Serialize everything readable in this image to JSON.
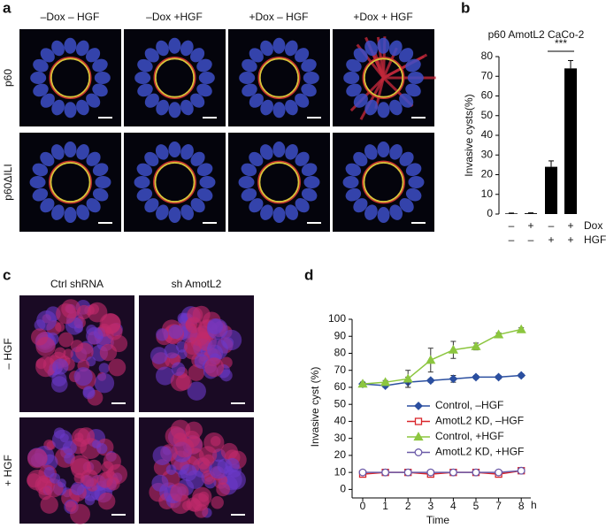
{
  "panels": {
    "a": {
      "letter": "a",
      "columns": [
        "–Dox – HGF",
        "–Dox +HGF",
        "+Dox  – HGF",
        "+Dox + HGF"
      ],
      "rows": [
        "p60",
        "p60ΔILI"
      ]
    },
    "c": {
      "letter": "c",
      "columns": [
        "Ctrl shRNA",
        "sh AmotL2"
      ],
      "rows": [
        "– HGF",
        "+ HGF"
      ]
    }
  },
  "chart_data": [
    {
      "type": "bar",
      "panel": "b",
      "title": "p60 AmotL2 CaCo-2",
      "ylabel": "Invasive cysts(%)",
      "values": [
        0.3,
        0.4,
        24,
        74
      ],
      "errors": [
        0.2,
        0.2,
        3,
        4
      ],
      "color": "#000000",
      "ylim": [
        0,
        80
      ],
      "yticks": [
        0,
        10,
        20,
        30,
        40,
        50,
        60,
        70,
        80
      ],
      "conditions": [
        {
          "name": "Dox",
          "values": [
            "–",
            "+",
            "–",
            "+"
          ]
        },
        {
          "name": "HGF",
          "values": [
            "–",
            "–",
            "+",
            "+"
          ]
        }
      ],
      "annotation": "***"
    },
    {
      "type": "line",
      "panel": "d",
      "xlabel": "Time",
      "x_unit": "h",
      "ylabel": "Invasive cyst (%)",
      "categories": [
        "0",
        "1",
        "2",
        "3",
        "4",
        "5",
        "7",
        "8"
      ],
      "ylim": [
        -5,
        100
      ],
      "yticks": [
        0,
        10,
        20,
        30,
        40,
        50,
        60,
        70,
        80,
        90,
        100
      ],
      "series": [
        {
          "name": "Control, –HGF",
          "color": "#2b4fa0",
          "marker": "diamond",
          "values": [
            62,
            61,
            63,
            64,
            65,
            66,
            66,
            67
          ],
          "errors": [
            1,
            1,
            3,
            1,
            2,
            1,
            1,
            1
          ]
        },
        {
          "name": "AmotL2 KD, –HGF",
          "color": "#d9262b",
          "marker": "square",
          "values": [
            9,
            10,
            10,
            9,
            10,
            10,
            9,
            11
          ],
          "errors": [
            1,
            1,
            1,
            1,
            1,
            1,
            1,
            1
          ]
        },
        {
          "name": "Control, +HGF",
          "color": "#8cc63f",
          "marker": "triangle",
          "values": [
            62,
            63,
            65,
            76,
            82,
            84,
            91,
            94
          ],
          "errors": [
            1,
            1,
            5,
            7,
            5,
            2,
            1,
            1
          ]
        },
        {
          "name": "AmotL2 KD, +HGF",
          "color": "#6b5aa8",
          "marker": "circle",
          "values": [
            10,
            10,
            10,
            10,
            10,
            10,
            10,
            11
          ],
          "errors": [
            1,
            1,
            1,
            1,
            1,
            1,
            1,
            1
          ]
        }
      ]
    }
  ]
}
